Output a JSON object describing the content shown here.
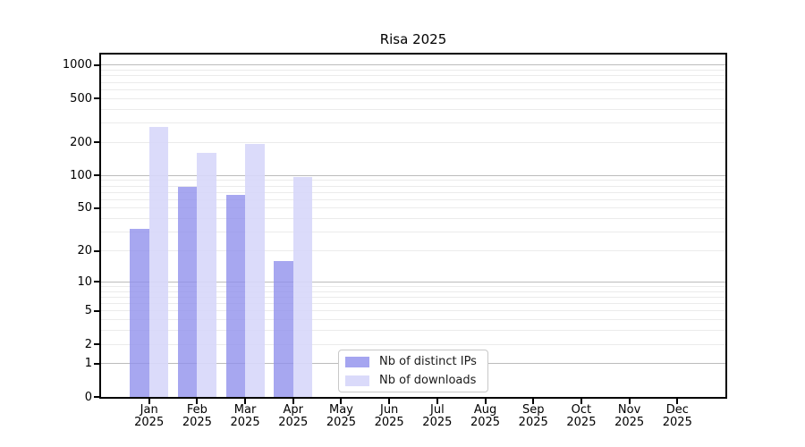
{
  "chart_data": {
    "type": "bar",
    "title": "Risa 2025",
    "categories": [
      "Jan",
      "Feb",
      "Mar",
      "Apr",
      "May",
      "Jun",
      "Jul",
      "Aug",
      "Sep",
      "Oct",
      "Nov",
      "Dec"
    ],
    "category_year": "2025",
    "series": [
      {
        "name": "Nb of distinct IPs",
        "color": "#8f8fecc8",
        "legend_color": "#a5a5f0",
        "values": [
          32,
          78,
          66,
          16,
          0,
          0,
          0,
          0,
          0,
          0,
          0,
          0
        ]
      },
      {
        "name": "Nb of downloads",
        "color": "#d7d7fae6",
        "legend_color": "#dadafa",
        "values": [
          275,
          160,
          193,
          97,
          0,
          0,
          0,
          0,
          0,
          0,
          0,
          0
        ]
      }
    ],
    "yticks": [
      0,
      1,
      2,
      5,
      10,
      20,
      50,
      100,
      200,
      500,
      1000
    ],
    "scale": "log10(1+x)",
    "ylim": [
      0,
      1250
    ],
    "grid": {
      "major_lines": [
        1,
        10,
        100,
        1000
      ],
      "major_color": "#bcbcbc",
      "minor_color": "#ebebeb"
    },
    "legend_position": "lower center",
    "axis_color": "#000000"
  }
}
